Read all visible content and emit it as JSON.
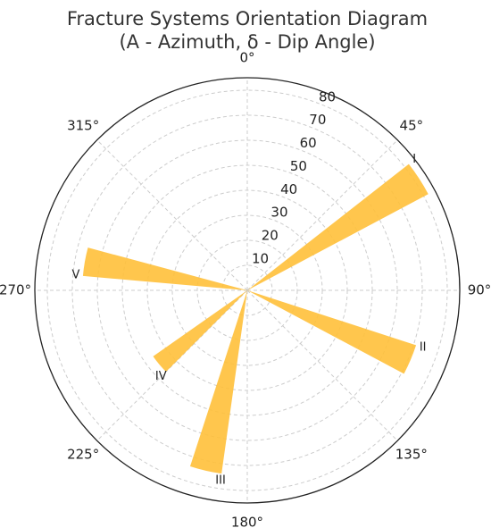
{
  "chart_data": {
    "type": "polar-bar",
    "title": "Fracture Systems Orientation Diagram",
    "subtitle": "(A - Azimuth, δ - Dip Angle)",
    "categories": [
      "I",
      "II",
      "III",
      "IV",
      "V"
    ],
    "x": [
      57,
      113,
      193,
      230,
      280
    ],
    "values": [
      82,
      71,
      74,
      46,
      66
    ],
    "color": "#ffc03a",
    "ylim": [
      0,
      85
    ],
    "yticks": [
      10,
      20,
      30,
      40,
      50,
      60,
      70,
      80
    ],
    "xlim": [
      0,
      360
    ],
    "xticks": [
      {
        "value": 0,
        "label": "0°"
      },
      {
        "value": 45,
        "label": "45°"
      },
      {
        "value": 90,
        "label": "90°"
      },
      {
        "value": 135,
        "label": "135°"
      },
      {
        "value": 180,
        "label": "180°"
      },
      {
        "value": 225,
        "label": "225°"
      },
      {
        "value": 270,
        "label": "270°"
      },
      {
        "value": 315,
        "label": "315°"
      }
    ],
    "grid": true
  }
}
